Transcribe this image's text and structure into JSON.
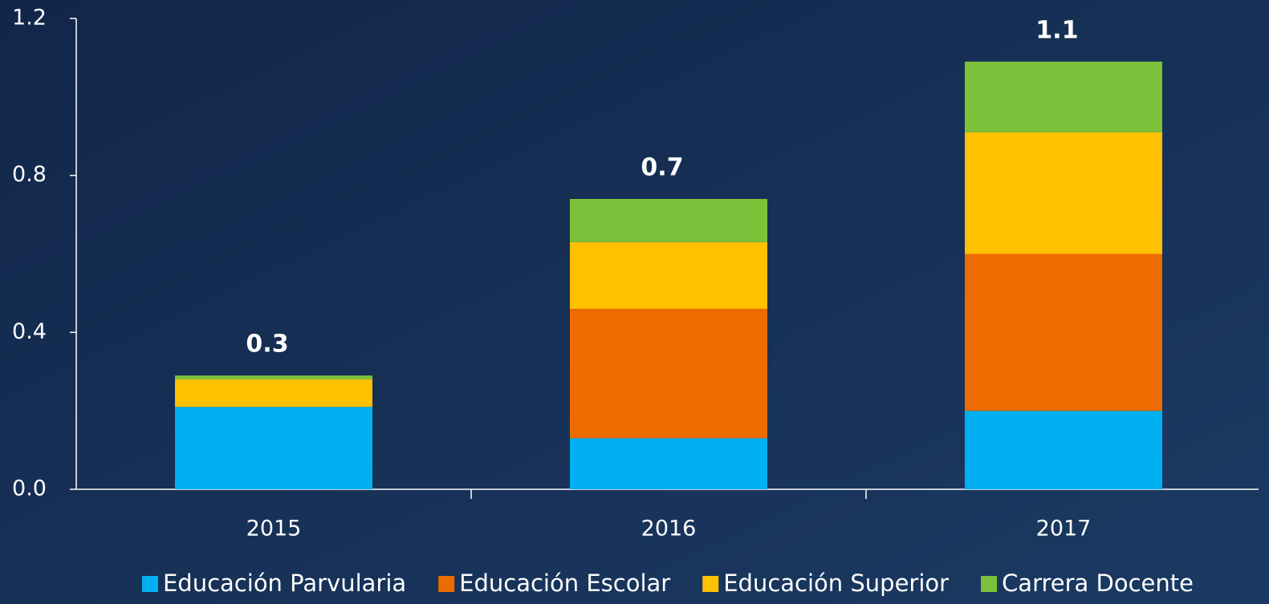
{
  "chart_data": {
    "type": "stacked-bar",
    "categories": [
      "2015",
      "2016",
      "2017"
    ],
    "series": [
      {
        "name": "Educación Parvularia",
        "color": "#00b0f0",
        "values": [
          0.21,
          0.13,
          0.2
        ]
      },
      {
        "name": "Educación Escolar",
        "color": "#ed6c02",
        "values": [
          0,
          0.33,
          0.4
        ]
      },
      {
        "name": "Educación Superior",
        "color": "#ffc000",
        "values": [
          0.07,
          0.17,
          0.31
        ]
      },
      {
        "name": "Carrera Docente",
        "color": "#7dc13a",
        "values": [
          0.01,
          0.11,
          0.18
        ]
      }
    ],
    "total_labels": [
      "0.3",
      "0.7",
      "1.1"
    ],
    "ylim": [
      0,
      1.2
    ],
    "yticks": [
      {
        "value": 0,
        "label": "0.0"
      },
      0.4,
      0.8,
      1.2
    ],
    "grid": false,
    "legend": "bottom"
  }
}
